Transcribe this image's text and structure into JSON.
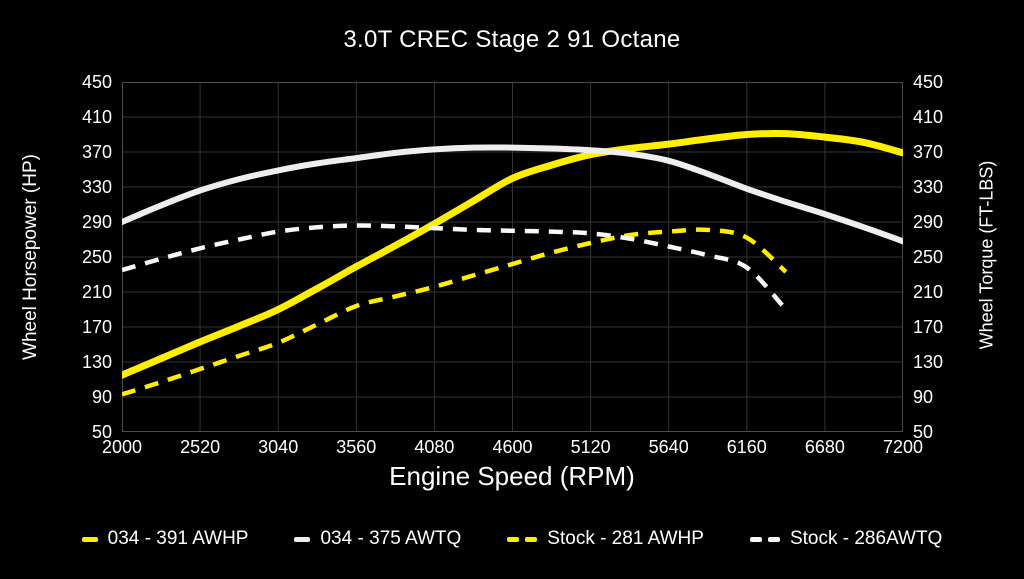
{
  "title": "3.0T CREC Stage 2 91 Octane",
  "colors": {
    "background": "#000000",
    "text": "#ffffff",
    "grid": "#333333",
    "plot_border": "#4d4d4d",
    "tuned_yellow": "#ffee00",
    "tuned_white": "#eeeeee",
    "stock_yellow": "#ffee00",
    "stock_white": "#f8f8f8"
  },
  "chart_data": {
    "type": "line",
    "title": "3.0T CREC Stage 2 91 Octane",
    "xlabel": "Engine Speed (RPM)",
    "ylabel_left": "Wheel Horsepower (HP)",
    "ylabel_right": "Wheel Torque (FT-LBS)",
    "xlim": [
      2000,
      7200
    ],
    "ylim_left": [
      50,
      450
    ],
    "ylim_right": [
      50,
      450
    ],
    "x_ticks": [
      2000,
      2520,
      3040,
      3560,
      4080,
      4600,
      5120,
      5640,
      6160,
      6680,
      7200
    ],
    "y_ticks": [
      450,
      410,
      370,
      330,
      290,
      250,
      210,
      170,
      130,
      90,
      50
    ],
    "grid": true,
    "legend_position": "bottom",
    "x": [
      2000,
      2260,
      2520,
      2780,
      3040,
      3300,
      3560,
      3820,
      4080,
      4340,
      4600,
      4860,
      5120,
      5380,
      5640,
      5900,
      6160,
      6420,
      6680,
      6940,
      7200
    ],
    "series": [
      {
        "name": "034 - 391 AWHP",
        "axis": "left",
        "style": "solid",
        "color": "#ffee00",
        "width": 7,
        "values": [
          115,
          134,
          153,
          171,
          190,
          214,
          239,
          263,
          288,
          314,
          340,
          355,
          367,
          374,
          379,
          385,
          390,
          391,
          387,
          381,
          369
        ]
      },
      {
        "name": "034 - 375 AWTQ",
        "axis": "right",
        "style": "solid",
        "color": "#eeeeee",
        "width": 6,
        "values": [
          290,
          309,
          326,
          339,
          349,
          357,
          363,
          369,
          373,
          375,
          375,
          374,
          372,
          368,
          360,
          345,
          328,
          313,
          299,
          284,
          268
        ]
      },
      {
        "name": "Stock - 281 AWHP",
        "axis": "left",
        "style": "dashed",
        "color": "#ffee00",
        "width": 4.5,
        "values": [
          93,
          107,
          122,
          137,
          152,
          173,
          194,
          205,
          216,
          229,
          242,
          255,
          266,
          275,
          279,
          281,
          272,
          233,
          null,
          null,
          null
        ]
      },
      {
        "name": "Stock - 286AWTQ",
        "axis": "right",
        "style": "dashed",
        "color": "#f8f8f8",
        "width": 4.5,
        "values": [
          235,
          248,
          260,
          270,
          279,
          284,
          286,
          285,
          283,
          281,
          280,
          279,
          277,
          271,
          262,
          252,
          238,
          190,
          null,
          null,
          null
        ]
      }
    ]
  }
}
